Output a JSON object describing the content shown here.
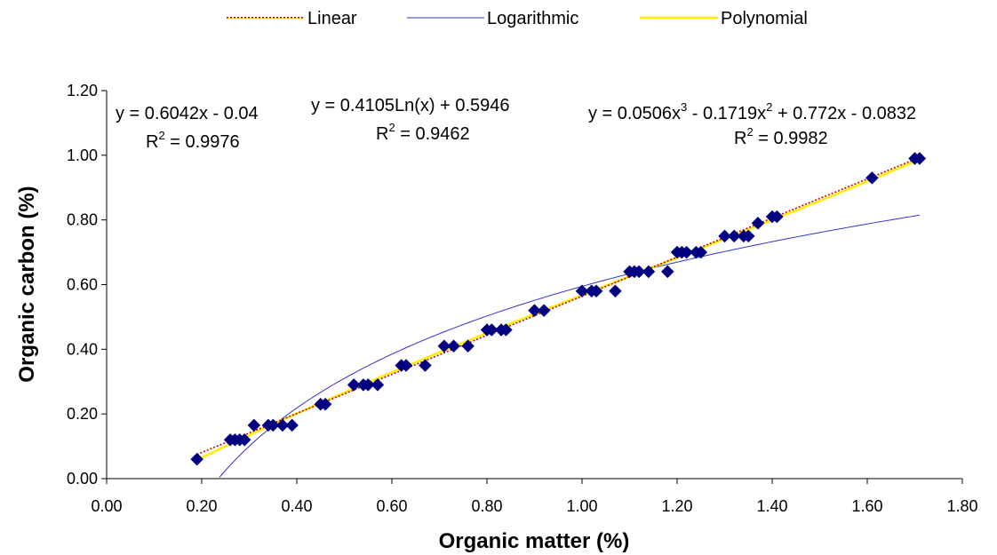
{
  "chart_data": {
    "type": "scatter",
    "title": "",
    "xlabel": "Organic matter (%)",
    "ylabel": "Organic carbon (%)",
    "xlim": [
      0,
      1.8
    ],
    "ylim": [
      0,
      1.2
    ],
    "x_ticks": [
      "0.00",
      "0.20",
      "0.40",
      "0.60",
      "0.80",
      "1.00",
      "1.20",
      "1.40",
      "1.60",
      "1.80"
    ],
    "y_ticks": [
      "0.00",
      "0.20",
      "0.40",
      "0.60",
      "0.80",
      "1.00",
      "1.20"
    ],
    "grid": false,
    "legend_position": "top",
    "points": [
      [
        0.19,
        0.06
      ],
      [
        0.26,
        0.12
      ],
      [
        0.27,
        0.12
      ],
      [
        0.28,
        0.12
      ],
      [
        0.29,
        0.12
      ],
      [
        0.31,
        0.165
      ],
      [
        0.34,
        0.165
      ],
      [
        0.35,
        0.165
      ],
      [
        0.37,
        0.165
      ],
      [
        0.39,
        0.165
      ],
      [
        0.45,
        0.23
      ],
      [
        0.46,
        0.23
      ],
      [
        0.52,
        0.29
      ],
      [
        0.54,
        0.29
      ],
      [
        0.55,
        0.29
      ],
      [
        0.57,
        0.29
      ],
      [
        0.62,
        0.35
      ],
      [
        0.63,
        0.35
      ],
      [
        0.67,
        0.35
      ],
      [
        0.71,
        0.41
      ],
      [
        0.73,
        0.41
      ],
      [
        0.76,
        0.41
      ],
      [
        0.8,
        0.46
      ],
      [
        0.81,
        0.46
      ],
      [
        0.83,
        0.46
      ],
      [
        0.84,
        0.46
      ],
      [
        0.9,
        0.52
      ],
      [
        0.92,
        0.52
      ],
      [
        1.0,
        0.58
      ],
      [
        1.02,
        0.58
      ],
      [
        1.03,
        0.58
      ],
      [
        1.07,
        0.58
      ],
      [
        1.1,
        0.64
      ],
      [
        1.11,
        0.64
      ],
      [
        1.12,
        0.64
      ],
      [
        1.14,
        0.64
      ],
      [
        1.18,
        0.64
      ],
      [
        1.2,
        0.7
      ],
      [
        1.21,
        0.7
      ],
      [
        1.22,
        0.7
      ],
      [
        1.24,
        0.7
      ],
      [
        1.25,
        0.7
      ],
      [
        1.3,
        0.75
      ],
      [
        1.32,
        0.75
      ],
      [
        1.34,
        0.75
      ],
      [
        1.35,
        0.75
      ],
      [
        1.37,
        0.79
      ],
      [
        1.4,
        0.81
      ],
      [
        1.41,
        0.81
      ],
      [
        1.61,
        0.93
      ],
      [
        1.7,
        0.99
      ],
      [
        1.71,
        0.99
      ]
    ],
    "trendlines": [
      {
        "name": "Linear",
        "kind": "linear",
        "coefficients": [
          0.6042,
          -0.04
        ],
        "color": "#cc0000",
        "x_range": [
          0.19,
          1.71
        ],
        "equation": "y = 0.6042x - 0.04",
        "r2": "= 0.9976"
      },
      {
        "name": "Logarithmic",
        "kind": "log",
        "coefficients": [
          0.4105,
          0.5946
        ],
        "color": "#3333cc",
        "x_range": [
          0.19,
          1.71
        ],
        "equation": "y = 0.4105Ln(x) + 0.5946",
        "r2": "= 0.9462"
      },
      {
        "name": "Polynomial",
        "kind": "poly3",
        "coefficients": [
          0.0506,
          -0.1719,
          0.772,
          -0.0832
        ],
        "color": "#ffee00",
        "x_range": [
          0.19,
          1.71
        ],
        "equation": "y = 0.0506x³ - 0.1719x² + 0.772x - 0.0832",
        "r2": "= 0.9982"
      }
    ],
    "marker_color": "#000080"
  },
  "equations": {
    "linear": {
      "line1": "y = 0.6042x - 0.04",
      "r_label": "R",
      "r_sup": "2",
      "r_value": " = 0.9976"
    },
    "log": {
      "line1": "y = 0.4105Ln(x) + 0.5946",
      "r_label": "R",
      "r_sup": "2",
      "r_value": " = 0.9462"
    },
    "poly": {
      "p1": "y = 0.0506x",
      "s1": "3",
      "p2": " - 0.1719x",
      "s2": "2",
      "p3": " + 0.772x - 0.0832",
      "r_label": "R",
      "r_sup": "2",
      "r_value": " = 0.9982"
    }
  }
}
